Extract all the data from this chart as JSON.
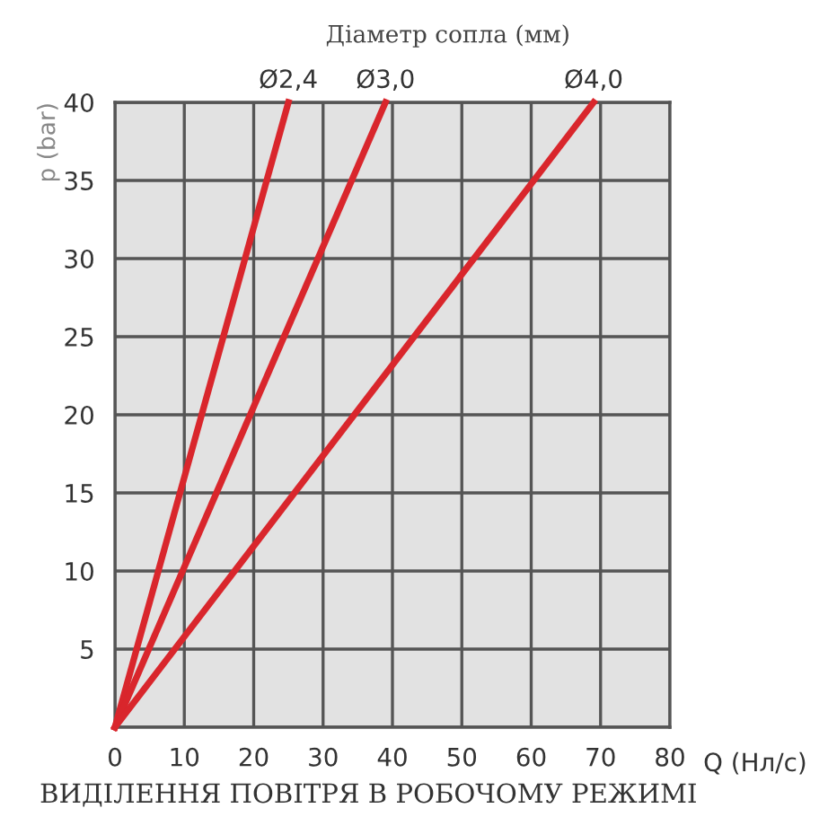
{
  "chart_data": {
    "type": "line",
    "title": "ВИДІЛЕННЯ ПОВІТРЯ В РОБОЧОМУ РЕЖИМІ",
    "subtitle": "Діаметр сопла (мм)",
    "xlabel": "Q (Нл/с)",
    "ylabel": "p (bar)",
    "series": [
      {
        "name": "Ø2,4",
        "color": "#d9262c",
        "x": [
          0,
          25
        ],
        "values": [
          0,
          40
        ]
      },
      {
        "name": "Ø3,0",
        "color": "#d9262c",
        "x": [
          0,
          39
        ],
        "values": [
          0,
          40
        ]
      },
      {
        "name": "Ø4,0",
        "color": "#d9262c",
        "x": [
          0,
          69
        ],
        "values": [
          0,
          40
        ]
      }
    ],
    "xlim": [
      0,
      80
    ],
    "xticks": [
      0,
      10,
      20,
      30,
      40,
      50,
      60,
      70,
      80
    ],
    "ylim": [
      0,
      40
    ],
    "yticks": [
      {
        "value": 0,
        "label": null
      },
      5,
      10,
      15,
      20,
      25,
      30,
      35,
      40
    ],
    "grid": true,
    "legend": false,
    "marker": "none",
    "line_style": "solid"
  }
}
